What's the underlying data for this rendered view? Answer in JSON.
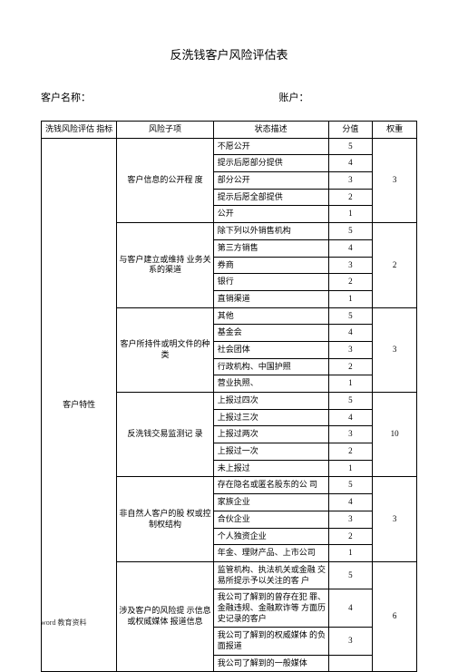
{
  "title": "反洗钱客户风险评估表",
  "labels": {
    "customerName": "客户名称：",
    "account": "账户："
  },
  "headers": {
    "indicator": "洗钱风险评估 指标",
    "subitem": "风险子项",
    "desc": "状态描述",
    "score": "分值",
    "weight": "权重"
  },
  "indicator": "客户特性",
  "g1": {
    "name": "客户信息的公开程 度",
    "weight": "3",
    "r": [
      {
        "d": "不愿公开",
        "s": "5"
      },
      {
        "d": "提示后愿部分提供",
        "s": "4"
      },
      {
        "d": "部分公开",
        "s": "3"
      },
      {
        "d": "提示后愿全部提供",
        "s": "2"
      },
      {
        "d": "公开",
        "s": "1"
      }
    ]
  },
  "g2": {
    "name": "与客户建立或维持 业务关系的渠道",
    "weight": "2",
    "r": [
      {
        "d": "除下列以外销售机构",
        "s": "5"
      },
      {
        "d": "第三方销售",
        "s": "4"
      },
      {
        "d": "券商",
        "s": "3"
      },
      {
        "d": "银行",
        "s": "2"
      },
      {
        "d": "直销渠道",
        "s": "1"
      }
    ]
  },
  "g3": {
    "name": "客户所持件或明文件的种类",
    "weight": "3",
    "r": [
      {
        "d": "其他",
        "s": "5"
      },
      {
        "d": "基金会",
        "s": "4"
      },
      {
        "d": "社会团体",
        "s": "3"
      },
      {
        "d": "行政机构、中国护照",
        "s": "2"
      },
      {
        "d": "营业执照、",
        "s": "1"
      }
    ]
  },
  "g4": {
    "name": "反洗钱交易监测记 录",
    "weight": "10",
    "r": [
      {
        "d": "上报过四次",
        "s": "5"
      },
      {
        "d": "上报过三次",
        "s": "4"
      },
      {
        "d": "上报过两次",
        "s": "3"
      },
      {
        "d": "上报过一次",
        "s": "2"
      },
      {
        "d": "未上报过",
        "s": "1"
      }
    ]
  },
  "g5": {
    "name": "非自然人客户的股 权或控制权结构",
    "weight": "3",
    "r": [
      {
        "d": "存在隐名或匿名股东的公 司",
        "s": "5"
      },
      {
        "d": "家族企业",
        "s": "4"
      },
      {
        "d": "合伙企业",
        "s": "3"
      },
      {
        "d": "个人独资企业",
        "s": "2"
      },
      {
        "d": "年金、理财产品、上市公司",
        "s": "1"
      }
    ]
  },
  "g6": {
    "name": "涉及客户的风险提 示信息或权威媒体 报道信息",
    "weight": "6",
    "r": [
      {
        "d": "监管机构、执法机关或金融 交易所提示予以关注的客 户",
        "s": "5"
      },
      {
        "d": "我公司了解到的曾存在犯 罪、金融违规、金融欺诈等 方面历史记录的客户",
        "s": "4"
      },
      {
        "d": "我公司了解到的权威媒体 的负面报道",
        "s": "3"
      },
      {
        "d": "我公司了解到的一般媒体",
        "s": ""
      }
    ]
  },
  "footer": "word 教育资料"
}
